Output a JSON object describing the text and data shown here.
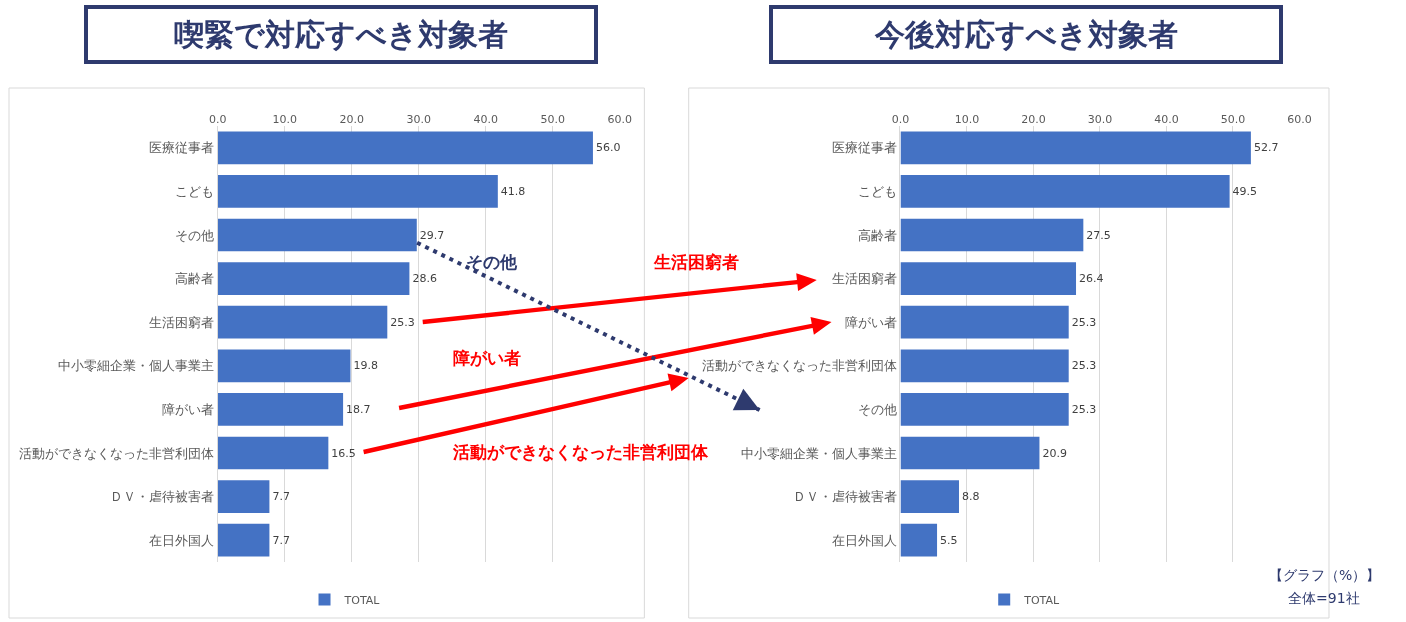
{
  "chart_data": [
    {
      "type": "bar",
      "orientation": "horizontal",
      "title": "喫緊で対応すべき対象者",
      "categories": [
        "医療従事者",
        "こども",
        "その他",
        "高齢者",
        "生活困窮者",
        "中小零細企業・個人事業主",
        "障がい者",
        "活動ができなくなった非営利団体",
        "ＤＶ・虐待被害者",
        "在日外国人"
      ],
      "series": [
        {
          "name": "TOTAL",
          "color": "#4472c4",
          "values": [
            56.0,
            41.8,
            29.7,
            28.6,
            25.3,
            19.8,
            18.7,
            16.5,
            7.7,
            7.7
          ],
          "value_labels": [
            "56.0",
            "41.8",
            "29.7",
            "28.6",
            "25.3",
            "19.8",
            "18.7",
            "16.5",
            "7.7",
            "7.7"
          ]
        }
      ],
      "xlim": [
        0,
        60
      ],
      "xticks": [
        {
          "value": 0,
          "label": "0.0"
        },
        {
          "value": 10,
          "label": "10.0"
        },
        {
          "value": 20,
          "label": "20.0"
        },
        {
          "value": 30,
          "label": "30.0"
        },
        {
          "value": 40,
          "label": "40.0"
        },
        {
          "value": 50,
          "label": "50.0"
        },
        {
          "value": 60,
          "label": "60.0"
        }
      ],
      "grid": "x",
      "legend": "bottom",
      "annotations": [
        "その他",
        "生活困窮者",
        "障がい者",
        "活動ができなくなった非営利団体"
      ]
    },
    {
      "type": "bar",
      "orientation": "horizontal",
      "title": "今後対応すべき対象者",
      "categories": [
        "医療従事者",
        "こども",
        "高齢者",
        "生活困窮者",
        "障がい者",
        "活動ができなくなった非営利団体",
        "その他",
        "中小零細企業・個人事業主",
        "ＤＶ・虐待被害者",
        "在日外国人"
      ],
      "series": [
        {
          "name": "TOTAL",
          "color": "#4472c4",
          "values": [
            52.7,
            49.5,
            27.5,
            26.4,
            25.3,
            25.3,
            25.3,
            20.9,
            8.8,
            5.5
          ],
          "value_labels": [
            "52.7",
            "49.5",
            "27.5",
            "26.4",
            "25.3",
            "25.3",
            "25.3",
            "20.9",
            "8.8",
            "5.5"
          ]
        }
      ],
      "xlim": [
        0,
        60
      ],
      "xticks": [
        {
          "value": 0,
          "label": "0.0"
        },
        {
          "value": 10,
          "label": "10.0"
        },
        {
          "value": 20,
          "label": "20.0"
        },
        {
          "value": 30,
          "label": "30.0"
        },
        {
          "value": 40,
          "label": "40.0"
        },
        {
          "value": 50,
          "label": "50.0"
        },
        {
          "value": 60,
          "label": "60.0"
        }
      ],
      "grid": "x",
      "legend": "bottom",
      "annotations": [
        "【グラフ（%）】",
        "全体=91社"
      ]
    }
  ]
}
